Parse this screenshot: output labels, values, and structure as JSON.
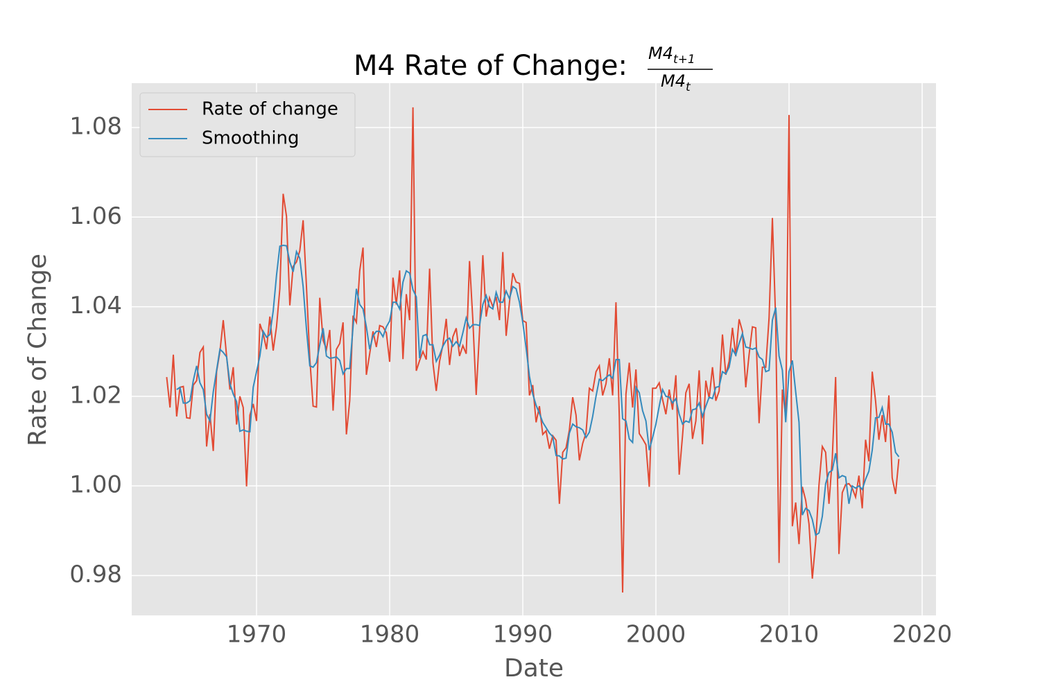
{
  "chart_data": {
    "type": "line",
    "title": "M4 Rate of Change:",
    "title_fraction": {
      "numerator": "M4",
      "numerator_subscript": "t+1",
      "denominator": "M4",
      "denominator_subscript": "t"
    },
    "xlabel": "Date",
    "ylabel": "Rate of Change",
    "xlim": [
      1960.625,
      2021.04
    ],
    "xticks": [
      1970,
      1980,
      1990,
      2000,
      2010,
      2020
    ],
    "ylim": [
      0.9711,
      1.0899
    ],
    "yticks": [
      {
        "value": 0.98,
        "label": "0.98"
      },
      {
        "value": 1.0,
        "label": "1.00"
      },
      {
        "value": 1.02,
        "label": "1.02"
      },
      {
        "value": 1.04,
        "label": "1.04"
      },
      {
        "value": 1.06,
        "label": "1.06"
      },
      {
        "value": 1.08,
        "label": "1.08"
      }
    ],
    "grid": true,
    "legend_position": "upper left",
    "x": [
      1963.25,
      1963.5,
      1963.75,
      1964,
      1964.25,
      1964.5,
      1964.75,
      1965,
      1965.25,
      1965.5,
      1965.75,
      1966,
      1966.25,
      1966.5,
      1966.75,
      1967,
      1967.25,
      1967.5,
      1967.75,
      1968,
      1968.25,
      1968.5,
      1968.75,
      1969,
      1969.25,
      1969.5,
      1969.75,
      1970,
      1970.25,
      1970.5,
      1970.75,
      1971,
      1971.25,
      1971.5,
      1971.75,
      1972,
      1972.25,
      1972.5,
      1972.75,
      1973,
      1973.25,
      1973.5,
      1973.75,
      1974,
      1974.25,
      1974.5,
      1974.75,
      1975,
      1975.25,
      1975.5,
      1975.75,
      1976,
      1976.25,
      1976.5,
      1976.75,
      1977,
      1977.25,
      1977.5,
      1977.75,
      1978,
      1978.25,
      1978.5,
      1978.75,
      1979,
      1979.25,
      1979.5,
      1979.75,
      1980,
      1980.25,
      1980.5,
      1980.75,
      1981,
      1981.25,
      1981.5,
      1981.75,
      1982,
      1982.25,
      1982.5,
      1982.75,
      1983,
      1983.25,
      1983.5,
      1983.75,
      1984,
      1984.25,
      1984.5,
      1984.75,
      1985,
      1985.25,
      1985.5,
      1985.75,
      1986,
      1986.25,
      1986.5,
      1986.75,
      1987,
      1987.25,
      1987.5,
      1987.75,
      1988,
      1988.25,
      1988.5,
      1988.75,
      1989,
      1989.25,
      1989.5,
      1989.75,
      1990,
      1990.25,
      1990.5,
      1990.75,
      1991,
      1991.25,
      1991.5,
      1991.75,
      1992,
      1992.25,
      1992.5,
      1992.75,
      1993,
      1993.25,
      1993.5,
      1993.75,
      1994,
      1994.25,
      1994.5,
      1994.75,
      1995,
      1995.25,
      1995.5,
      1995.75,
      1996,
      1996.25,
      1996.5,
      1996.75,
      1997,
      1997.25,
      1997.5,
      1997.75,
      1998,
      1998.25,
      1998.5,
      1998.75,
      1999,
      1999.25,
      1999.5,
      1999.75,
      2000,
      2000.25,
      2000.5,
      2000.75,
      2001,
      2001.25,
      2001.5,
      2001.75,
      2002,
      2002.25,
      2002.5,
      2002.75,
      2003,
      2003.25,
      2003.5,
      2003.75,
      2004,
      2004.25,
      2004.5,
      2004.75,
      2005,
      2005.25,
      2005.5,
      2005.75,
      2006,
      2006.25,
      2006.5,
      2006.75,
      2007,
      2007.25,
      2007.5,
      2007.75,
      2008,
      2008.25,
      2008.5,
      2008.75,
      2009,
      2009.25,
      2009.5,
      2009.75,
      2010,
      2010.25,
      2010.5,
      2010.75,
      2011,
      2011.25,
      2011.5,
      2011.75,
      2012,
      2012.25,
      2012.5,
      2012.75,
      2013,
      2013.25,
      2013.5,
      2013.75,
      2014,
      2014.25,
      2014.5,
      2014.75,
      2015,
      2015.25,
      2015.5,
      2015.75,
      2016,
      2016.25,
      2016.5,
      2016.75,
      2017,
      2017.25,
      2017.5,
      2017.75,
      2018,
      2018.25
    ],
    "series": [
      {
        "name": "Rate of change",
        "color": "#e24a33",
        "values": [
          1.0243,
          1.0175,
          1.0293,
          1.0155,
          1.022,
          1.0222,
          1.0152,
          1.0151,
          1.0225,
          1.0235,
          1.0298,
          1.031,
          1.0088,
          1.016,
          1.0078,
          1.0255,
          1.03,
          1.037,
          1.029,
          1.0215,
          1.0265,
          1.0137,
          1.02,
          1.0175,
          0.9999,
          1.0158,
          1.0183,
          1.0145,
          1.0362,
          1.034,
          1.0305,
          1.0378,
          1.0302,
          1.0355,
          1.044,
          1.0652,
          1.0602,
          1.0403,
          1.049,
          1.05,
          1.0525,
          1.0593,
          1.0445,
          1.0285,
          1.0178,
          1.0176,
          1.042,
          1.0325,
          1.0305,
          1.0348,
          1.0168,
          1.0305,
          1.0318,
          1.0365,
          1.0115,
          1.019,
          1.038,
          1.0365,
          1.048,
          1.0532,
          1.0248,
          1.0295,
          1.0345,
          1.031,
          1.0358,
          1.0355,
          1.0342,
          1.0277,
          1.0465,
          1.0405,
          1.0481,
          1.0283,
          1.0428,
          1.037,
          1.0845,
          1.0257,
          1.028,
          1.03,
          1.0282,
          1.0485,
          1.0275,
          1.0212,
          1.0278,
          1.0315,
          1.0373,
          1.027,
          1.0333,
          1.0352,
          1.029,
          1.0313,
          1.0295,
          1.0502,
          1.037,
          1.0203,
          1.0345,
          1.0515,
          1.0378,
          1.042,
          1.04,
          1.0422,
          1.037,
          1.0522,
          1.0335,
          1.041,
          1.0475,
          1.0455,
          1.0452,
          1.0369,
          1.0365,
          1.0202,
          1.0225,
          1.0142,
          1.0178,
          1.0115,
          1.0123,
          1.0083,
          1.0112,
          1.0102,
          0.996,
          1.0075,
          1.0085,
          1.0125,
          1.0198,
          1.0158,
          1.0057,
          1.0095,
          1.0118,
          1.0218,
          1.0212,
          1.0255,
          1.0268,
          1.0202,
          1.0228,
          1.0285,
          1.0202,
          1.041,
          1.0155,
          0.9762,
          1.0205,
          1.0275,
          1.0175,
          1.026,
          1.0117,
          1.0105,
          1.0092,
          0.9998,
          1.0218,
          1.0218,
          1.023,
          1.0193,
          1.016,
          1.0215,
          1.017,
          1.0247,
          1.0025,
          1.0112,
          1.0208,
          1.0228,
          1.0105,
          1.0145,
          1.0258,
          1.0093,
          1.0235,
          1.0195,
          1.0265,
          1.019,
          1.0212,
          1.0338,
          1.0248,
          1.0278,
          1.0353,
          1.029,
          1.0372,
          1.0345,
          1.022,
          1.0293,
          1.0355,
          1.0353,
          1.014,
          1.0265,
          1.0265,
          1.0375,
          1.0598,
          1.0365,
          0.9828,
          1.0215,
          1.0155,
          1.0828,
          0.991,
          0.9963,
          0.987,
          0.9998,
          0.9968,
          0.9915,
          0.9793,
          0.9875,
          1.0002,
          1.0088,
          1.0075,
          0.996,
          1.0062,
          1.0243,
          0.9848,
          0.9985,
          1.0003,
          1.0005,
          0.9995,
          0.9975,
          1.0023,
          0.995,
          1.0103,
          1.0055,
          1.0255,
          1.019,
          1.0103,
          1.0158,
          1.0098,
          1.0202,
          1.0018,
          0.9982,
          1.006
        ]
      },
      {
        "name": "Smoothing",
        "color": "#348abd",
        "values": [
          null,
          null,
          null,
          1.0215,
          1.022,
          1.0185,
          1.0185,
          1.019,
          1.0235,
          1.0268,
          1.023,
          1.0215,
          1.016,
          1.0145,
          1.021,
          1.0258,
          1.0305,
          1.0298,
          1.0288,
          1.0228,
          1.0205,
          1.0188,
          1.0122,
          1.0125,
          1.0122,
          1.0121,
          1.022,
          1.0255,
          1.029,
          1.0345,
          1.0332,
          1.0338,
          1.039,
          1.047,
          1.0535,
          1.0537,
          1.0536,
          1.05,
          1.0478,
          1.0523,
          1.0508,
          1.0445,
          1.035,
          1.0268,
          1.0265,
          1.0275,
          1.0315,
          1.0352,
          1.029,
          1.0285,
          1.0286,
          1.0288,
          1.028,
          1.025,
          1.0262,
          1.0262,
          1.0355,
          1.044,
          1.0405,
          1.0395,
          1.0355,
          1.0305,
          1.0335,
          1.0345,
          1.0345,
          1.0333,
          1.0355,
          1.0368,
          1.041,
          1.041,
          1.0395,
          1.0455,
          1.048,
          1.0475,
          1.0438,
          1.0422,
          1.0285,
          1.0335,
          1.0338,
          1.0315,
          1.0315,
          1.0278,
          1.0292,
          1.0312,
          1.0325,
          1.033,
          1.0312,
          1.0322,
          1.0312,
          1.0342,
          1.0375,
          1.0352,
          1.036,
          1.036,
          1.0358,
          1.0405,
          1.0425,
          1.04,
          1.0395,
          1.0432,
          1.041,
          1.041,
          1.0435,
          1.0418,
          1.0445,
          1.044,
          1.041,
          1.0365,
          1.0308,
          1.0245,
          1.0205,
          1.018,
          1.0162,
          1.0142,
          1.013,
          1.0118,
          1.011,
          1.0068,
          1.0067,
          1.006,
          1.0062,
          1.0118,
          1.0138,
          1.0132,
          1.013,
          1.0125,
          1.0108,
          1.012,
          1.0155,
          1.02,
          1.0238,
          1.0235,
          1.0242,
          1.0248,
          1.024,
          1.0282,
          1.0282,
          1.015,
          1.0145,
          1.0105,
          1.0097,
          1.022,
          1.0208,
          1.0168,
          1.0145,
          1.008,
          1.0108,
          1.0138,
          1.0178,
          1.0215,
          1.02,
          1.0198,
          1.0185,
          1.0195,
          1.016,
          1.0138,
          1.0145,
          1.0142,
          1.017,
          1.0172,
          1.0185,
          1.0155,
          1.0178,
          1.0198,
          1.0195,
          1.022,
          1.0222,
          1.0255,
          1.025,
          1.0265,
          1.0305,
          1.0292,
          1.0318,
          1.034,
          1.031,
          1.0308,
          1.0305,
          1.0308,
          1.0288,
          1.0282,
          1.0255,
          1.0258,
          1.037,
          1.0398,
          1.029,
          1.0258,
          1.0142,
          1.0255,
          1.028,
          1.021,
          1.0142,
          0.9935,
          0.995,
          0.9945,
          0.9925,
          0.989,
          0.9895,
          0.9932,
          1.0005,
          1.003,
          1.0035,
          1.0073,
          1.0018,
          1.0023,
          1.002,
          0.996,
          1.0,
          0.9995,
          1.0,
          0.9992,
          1.0015,
          1.0033,
          1.008,
          1.0152,
          1.0153,
          1.0175,
          1.0138,
          1.0138,
          1.012,
          1.0075,
          1.0065
        ]
      }
    ]
  }
}
